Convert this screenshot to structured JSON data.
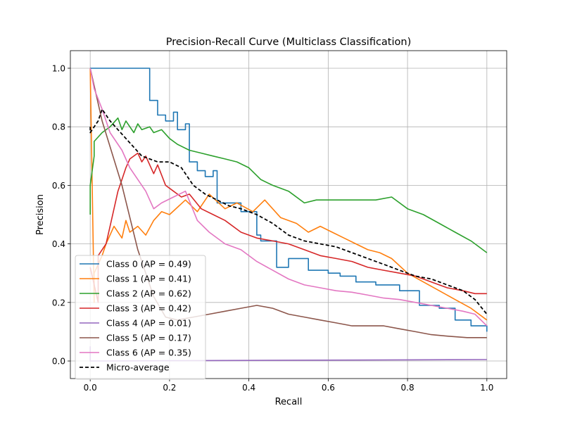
{
  "chart_data": {
    "type": "line",
    "title": "Precision-Recall Curve (Multiclass Classification)",
    "xlabel": "Recall",
    "ylabel": "Precision",
    "xlim": [
      -0.05,
      1.05
    ],
    "ylim": [
      -0.06,
      1.06
    ],
    "xticks": [
      0.0,
      0.2,
      0.4,
      0.6,
      0.8,
      1.0
    ],
    "yticks": [
      0.0,
      0.2,
      0.4,
      0.6,
      0.8,
      1.0
    ],
    "xtick_labels": [
      "0.0",
      "0.2",
      "0.4",
      "0.6",
      "0.8",
      "1.0"
    ],
    "ytick_labels": [
      "0.0",
      "0.2",
      "0.4",
      "0.6",
      "0.8",
      "1.0"
    ],
    "grid": true,
    "legend_position": "lower-left",
    "series": [
      {
        "name": "Class 0 (AP = 0.49)",
        "color": "#1f77b4",
        "dashed": false,
        "x": [
          0.0,
          0.0,
          0.15,
          0.15,
          0.17,
          0.17,
          0.19,
          0.19,
          0.21,
          0.21,
          0.22,
          0.22,
          0.24,
          0.24,
          0.25,
          0.25,
          0.27,
          0.27,
          0.29,
          0.29,
          0.31,
          0.31,
          0.32,
          0.32,
          0.35,
          0.35,
          0.38,
          0.38,
          0.42,
          0.42,
          0.43,
          0.43,
          0.47,
          0.47,
          0.5,
          0.5,
          0.55,
          0.55,
          0.6,
          0.6,
          0.63,
          0.63,
          0.67,
          0.67,
          0.72,
          0.72,
          0.78,
          0.78,
          0.83,
          0.83,
          0.88,
          0.88,
          0.92,
          0.92,
          0.96,
          0.96,
          1.0,
          1.0
        ],
        "y": [
          1.0,
          1.0,
          1.0,
          0.89,
          0.89,
          0.84,
          0.84,
          0.82,
          0.82,
          0.85,
          0.85,
          0.79,
          0.79,
          0.81,
          0.81,
          0.68,
          0.68,
          0.65,
          0.65,
          0.63,
          0.63,
          0.65,
          0.65,
          0.54,
          0.54,
          0.54,
          0.54,
          0.51,
          0.51,
          0.43,
          0.43,
          0.41,
          0.41,
          0.32,
          0.32,
          0.35,
          0.35,
          0.31,
          0.31,
          0.3,
          0.3,
          0.29,
          0.29,
          0.27,
          0.27,
          0.26,
          0.26,
          0.24,
          0.24,
          0.19,
          0.19,
          0.18,
          0.18,
          0.14,
          0.14,
          0.12,
          0.12,
          0.1
        ]
      },
      {
        "name": "Class 1 (AP = 0.41)",
        "color": "#ff7f0e",
        "dashed": false,
        "x": [
          0.0,
          0.01,
          0.01,
          0.03,
          0.04,
          0.06,
          0.08,
          0.09,
          0.1,
          0.12,
          0.14,
          0.16,
          0.18,
          0.2,
          0.24,
          0.27,
          0.3,
          0.34,
          0.37,
          0.41,
          0.44,
          0.48,
          0.52,
          0.55,
          0.58,
          0.61,
          0.64,
          0.67,
          0.7,
          0.73,
          0.76,
          0.8,
          0.84,
          0.88,
          0.92,
          0.96,
          1.0
        ],
        "y": [
          1.0,
          0.2,
          0.3,
          0.36,
          0.4,
          0.46,
          0.42,
          0.48,
          0.44,
          0.46,
          0.43,
          0.48,
          0.51,
          0.5,
          0.55,
          0.51,
          0.57,
          0.52,
          0.54,
          0.51,
          0.55,
          0.49,
          0.47,
          0.44,
          0.46,
          0.44,
          0.42,
          0.4,
          0.38,
          0.37,
          0.35,
          0.3,
          0.27,
          0.24,
          0.21,
          0.18,
          0.14
        ]
      },
      {
        "name": "Class 2 (AP = 0.62)",
        "color": "#2ca02c",
        "dashed": false,
        "x": [
          0.0,
          0.0,
          0.01,
          0.01,
          0.03,
          0.05,
          0.07,
          0.08,
          0.09,
          0.11,
          0.12,
          0.13,
          0.15,
          0.16,
          0.18,
          0.2,
          0.22,
          0.25,
          0.28,
          0.31,
          0.34,
          0.37,
          0.4,
          0.43,
          0.46,
          0.5,
          0.54,
          0.57,
          0.6,
          0.64,
          0.68,
          0.72,
          0.76,
          0.8,
          0.84,
          0.88,
          0.92,
          0.96,
          1.0
        ],
        "y": [
          0.5,
          0.6,
          0.7,
          0.75,
          0.78,
          0.8,
          0.83,
          0.79,
          0.82,
          0.78,
          0.81,
          0.79,
          0.8,
          0.78,
          0.79,
          0.76,
          0.74,
          0.72,
          0.71,
          0.7,
          0.69,
          0.68,
          0.66,
          0.62,
          0.6,
          0.58,
          0.54,
          0.55,
          0.55,
          0.55,
          0.55,
          0.55,
          0.56,
          0.52,
          0.5,
          0.47,
          0.44,
          0.41,
          0.37
        ]
      },
      {
        "name": "Class 3 (AP = 0.42)",
        "color": "#d62728",
        "dashed": false,
        "x": [
          0.0,
          0.02,
          0.02,
          0.04,
          0.05,
          0.06,
          0.07,
          0.08,
          0.09,
          0.1,
          0.12,
          0.13,
          0.14,
          0.16,
          0.17,
          0.19,
          0.21,
          0.23,
          0.25,
          0.28,
          0.31,
          0.34,
          0.38,
          0.42,
          0.46,
          0.5,
          0.54,
          0.58,
          0.62,
          0.66,
          0.7,
          0.74,
          0.78,
          0.82,
          0.86,
          0.9,
          0.94,
          0.97,
          1.0
        ],
        "y": [
          0.32,
          0.2,
          0.36,
          0.4,
          0.46,
          0.52,
          0.58,
          0.62,
          0.66,
          0.69,
          0.71,
          0.68,
          0.7,
          0.64,
          0.67,
          0.6,
          0.58,
          0.56,
          0.57,
          0.52,
          0.5,
          0.48,
          0.44,
          0.42,
          0.41,
          0.4,
          0.38,
          0.36,
          0.35,
          0.34,
          0.32,
          0.31,
          0.3,
          0.29,
          0.27,
          0.25,
          0.24,
          0.23,
          0.23
        ]
      },
      {
        "name": "Class 4 (AP = 0.01)",
        "color": "#9467bd",
        "dashed": false,
        "x": [
          0.0,
          0.0,
          0.05,
          0.2,
          0.4,
          0.6,
          0.8,
          1.0
        ],
        "y": [
          0.05,
          0.0,
          0.0,
          0.001,
          0.002,
          0.003,
          0.004,
          0.005
        ]
      },
      {
        "name": "Class 5 (AP = 0.17)",
        "color": "#8c564b",
        "dashed": false,
        "x": [
          0.0,
          0.03,
          0.08,
          0.12,
          0.16,
          0.19,
          0.22,
          0.26,
          0.3,
          0.34,
          0.38,
          0.42,
          0.46,
          0.5,
          0.54,
          0.58,
          0.62,
          0.66,
          0.7,
          0.74,
          0.78,
          0.82,
          0.86,
          0.9,
          0.95,
          1.0
        ],
        "y": [
          1.0,
          0.82,
          0.6,
          0.38,
          0.22,
          0.15,
          0.14,
          0.15,
          0.16,
          0.17,
          0.18,
          0.19,
          0.18,
          0.16,
          0.15,
          0.14,
          0.13,
          0.12,
          0.12,
          0.12,
          0.11,
          0.1,
          0.09,
          0.085,
          0.08,
          0.08
        ]
      },
      {
        "name": "Class 6 (AP = 0.35)",
        "color": "#e377c2",
        "dashed": false,
        "x": [
          0.0,
          0.01,
          0.03,
          0.05,
          0.08,
          0.1,
          0.12,
          0.14,
          0.16,
          0.18,
          0.21,
          0.24,
          0.27,
          0.3,
          0.34,
          0.38,
          0.42,
          0.46,
          0.5,
          0.54,
          0.58,
          0.62,
          0.66,
          0.7,
          0.74,
          0.78,
          0.82,
          0.86,
          0.9,
          0.94,
          0.97,
          1.0
        ],
        "y": [
          1.0,
          0.93,
          0.86,
          0.78,
          0.72,
          0.66,
          0.62,
          0.58,
          0.52,
          0.54,
          0.56,
          0.58,
          0.48,
          0.44,
          0.4,
          0.38,
          0.34,
          0.31,
          0.28,
          0.26,
          0.25,
          0.24,
          0.235,
          0.225,
          0.215,
          0.21,
          0.2,
          0.19,
          0.18,
          0.17,
          0.16,
          0.12
        ]
      },
      {
        "name": "Micro-average",
        "color": "#000000",
        "dashed": true,
        "x": [
          0.0,
          0.0,
          0.01,
          0.02,
          0.03,
          0.04,
          0.05,
          0.07,
          0.09,
          0.11,
          0.13,
          0.15,
          0.17,
          0.2,
          0.23,
          0.26,
          0.29,
          0.32,
          0.35,
          0.38,
          0.42,
          0.46,
          0.5,
          0.54,
          0.58,
          0.62,
          0.66,
          0.7,
          0.74,
          0.78,
          0.82,
          0.86,
          0.9,
          0.94,
          0.97,
          1.0
        ],
        "y": [
          0.8,
          0.78,
          0.8,
          0.82,
          0.86,
          0.84,
          0.82,
          0.79,
          0.76,
          0.73,
          0.7,
          0.69,
          0.68,
          0.68,
          0.66,
          0.6,
          0.57,
          0.55,
          0.53,
          0.52,
          0.5,
          0.47,
          0.43,
          0.41,
          0.4,
          0.39,
          0.37,
          0.35,
          0.33,
          0.31,
          0.29,
          0.28,
          0.26,
          0.24,
          0.21,
          0.16
        ]
      }
    ]
  }
}
